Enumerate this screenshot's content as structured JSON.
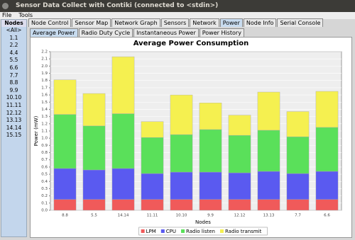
{
  "window": {
    "title": "Sensor Data Collect with Contiki (connected to <stdin>)"
  },
  "menu": [
    "File",
    "Tools"
  ],
  "nodes": {
    "header": "Nodes",
    "items": [
      "<All>",
      "1.1",
      "2.2",
      "4.4",
      "5.5",
      "6.6",
      "7.7",
      "8.8",
      "9.9",
      "10.10",
      "11.11",
      "12.12",
      "13.13",
      "14.14",
      "15.15"
    ]
  },
  "tabs": [
    "Node Control",
    "Sensor Map",
    "Network Graph",
    "Sensors",
    "Network",
    "Power",
    "Node Info",
    "Serial Console"
  ],
  "subtabs": [
    "Average Power",
    "Radio Duty Cycle",
    "Instantaneous Power",
    "Power History"
  ],
  "chart_data": {
    "type": "stacked_bar",
    "title": "Average Power Consumption",
    "x_label": "Nodes",
    "y_label": "Power (mW)",
    "categories": [
      "8.8",
      "5.5",
      "14.14",
      "11.11",
      "10.10",
      "9.9",
      "12.12",
      "13.13",
      "7.7",
      "6.6"
    ],
    "series": [
      {
        "name": "LPM",
        "color": "#f05a5a",
        "values": [
          0.15,
          0.15,
          0.15,
          0.15,
          0.15,
          0.15,
          0.15,
          0.15,
          0.15,
          0.15
        ]
      },
      {
        "name": "CPU",
        "color": "#5a5af0",
        "values": [
          0.43,
          0.41,
          0.43,
          0.36,
          0.38,
          0.38,
          0.37,
          0.39,
          0.36,
          0.39
        ]
      },
      {
        "name": "Radio listen",
        "color": "#5ae05a",
        "values": [
          0.75,
          0.61,
          0.76,
          0.5,
          0.52,
          0.59,
          0.52,
          0.57,
          0.51,
          0.61
        ]
      },
      {
        "name": "Radio transmit",
        "color": "#f5f050",
        "values": [
          0.48,
          0.45,
          0.79,
          0.22,
          0.55,
          0.37,
          0.28,
          0.53,
          0.35,
          0.5
        ]
      }
    ],
    "ylim": [
      0,
      2.2
    ],
    "yticks": [
      {
        "value": 0,
        "label": "0.0"
      },
      0.1,
      0.2,
      0.3,
      0.4,
      0.5,
      0.6,
      0.7,
      0.8,
      0.9,
      {
        "value": 1,
        "label": "1.0"
      },
      1.1,
      1.2,
      1.3,
      1.4,
      1.5,
      1.6,
      1.7,
      1.8,
      1.9,
      {
        "value": 2,
        "label": "2.0"
      },
      2.1,
      2.2
    ],
    "grid": true,
    "legend": "bottom"
  }
}
